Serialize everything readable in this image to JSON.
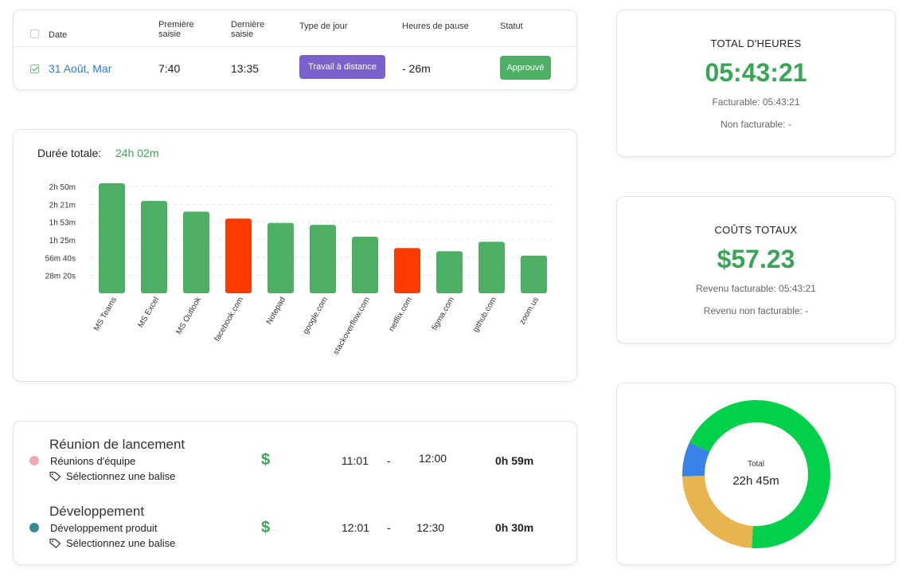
{
  "table": {
    "headers": {
      "date": "Date",
      "first_entry": "Première\nsaisie",
      "last_entry": "Dernière\nsaisie",
      "day_type": "Type de jour",
      "break_hours": "Heures de pause",
      "status": "Statut"
    },
    "header_checked": false,
    "row": {
      "checked": true,
      "date": "31 Août, Mar",
      "first_entry": "7:40",
      "last_entry": "13:35",
      "day_type": "Travail à distance",
      "break": "- 26m",
      "status": "Approuvé"
    }
  },
  "chart_card": {
    "title": "Durée totale:",
    "total": "24h 02m"
  },
  "chart_data": {
    "type": "bar",
    "y_tick_labels": [
      "2h 50m",
      "2h 21m",
      "1h 53m",
      "1h 25m",
      "56m 40s",
      "28m 20s"
    ],
    "y_tick_minutes": [
      170,
      141.67,
      113.33,
      85,
      56.67,
      28.33
    ],
    "ylim_minutes": [
      0,
      180
    ],
    "categories": [
      "MS Teams",
      "MS Excel",
      "MS Outlook",
      "facebook.com",
      "Notepad",
      "google.com",
      "stackoverflow.com",
      "netflix.com",
      "figma.com",
      "github.com",
      "zoom.us"
    ],
    "values_minutes": [
      175,
      147,
      130,
      119,
      112,
      109,
      90,
      72,
      67,
      82,
      60
    ],
    "bar_colors": [
      "#4caf64",
      "#4caf64",
      "#4caf64",
      "#ff3b00",
      "#4caf64",
      "#4caf64",
      "#4caf64",
      "#ff3b00",
      "#4caf64",
      "#4caf64",
      "#4caf64"
    ],
    "grid": "dashed horizontal",
    "legend": "none"
  },
  "activities": [
    {
      "title": "Réunion de lancement",
      "category": "Réunions d'équipe",
      "dot_color": "#f2a7b4",
      "tag": "Sélectionnez une balise",
      "tag_icon": "tag-icon",
      "billable_icon": "$",
      "start": "11:01",
      "separator": "-",
      "end": "12:00",
      "duration": "0h 59m"
    },
    {
      "title": "Développement",
      "category": "Développement produit",
      "dot_color": "#3a8a96",
      "tag": "Sélectionnez une balise",
      "tag_icon": "tag-icon",
      "billable_icon": "$",
      "start": "12:01",
      "separator": "-",
      "end": "12:30",
      "duration": "0h 30m"
    }
  ],
  "hours_card": {
    "title": "TOTAL D'HEURES",
    "value": "05:43:21",
    "billable": "Facturable: 05:43:21",
    "non_billable": "Non facturable: -"
  },
  "cost_card": {
    "title": "COÛTS TOTAUX",
    "value": "$57.23",
    "billable": "Revenu facturable: 05:43:21",
    "non_billable": "Revenu non facturable: -"
  },
  "donut": {
    "label": "Total",
    "value": "22h 45m",
    "segments": [
      {
        "fraction": 0.69,
        "color": "#00d04a"
      },
      {
        "fraction": 0.235,
        "color": "#e8b44e"
      },
      {
        "fraction": 0.075,
        "color": "#3a82e8"
      }
    ]
  },
  "colors": {
    "accent_green": "#3aa556",
    "badge_purple": "#7b61c9",
    "badge_green": "#4caf64",
    "date_link": "#2a7fd4"
  }
}
